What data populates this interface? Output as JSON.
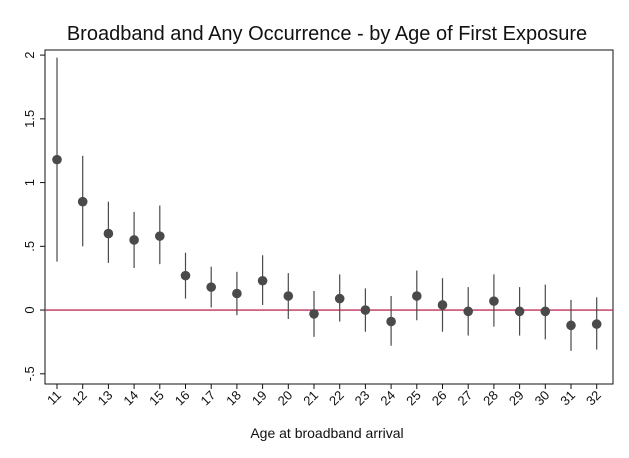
{
  "chart_data": {
    "type": "scatter",
    "title": "Broadband and Any Occurrence - by Age of First Exposure",
    "xlabel": "Age at broadband arrival",
    "ylabel": "",
    "categories": [
      "11",
      "12",
      "13",
      "14",
      "15",
      "16",
      "17",
      "18",
      "19",
      "20",
      "21",
      "22",
      "23",
      "24",
      "25",
      "26",
      "27",
      "28",
      "29",
      "30",
      "31",
      "32"
    ],
    "series": [
      {
        "values": [
          1.18,
          0.85,
          0.6,
          0.55,
          0.58,
          0.27,
          0.18,
          0.13,
          0.23,
          0.11,
          -0.03,
          0.09,
          0.0,
          -0.09,
          0.11,
          0.04,
          -0.01,
          0.07,
          -0.01,
          -0.01,
          -0.12,
          -0.11
        ],
        "ci_lower": [
          0.38,
          0.5,
          0.37,
          0.33,
          0.36,
          0.09,
          0.02,
          -0.04,
          0.04,
          -0.07,
          -0.21,
          -0.09,
          -0.17,
          -0.28,
          -0.08,
          -0.17,
          -0.2,
          -0.13,
          -0.2,
          -0.23,
          -0.32,
          -0.31
        ],
        "ci_upper": [
          1.98,
          1.21,
          0.85,
          0.77,
          0.82,
          0.45,
          0.34,
          0.3,
          0.43,
          0.29,
          0.15,
          0.28,
          0.17,
          0.11,
          0.31,
          0.25,
          0.18,
          0.28,
          0.18,
          0.2,
          0.08,
          0.1
        ]
      }
    ],
    "yticks": [
      -0.5,
      0,
      0.5,
      1,
      1.5,
      2
    ],
    "ytick_labels": [
      "-.5",
      "0",
      ".5",
      "1",
      "1.5",
      "2"
    ],
    "ylim": [
      -0.58,
      2.04
    ],
    "reference_line": 0,
    "grid": false,
    "colors": {
      "marker": "#4a4a4a",
      "ci_line": "#4a4a4a",
      "reference_line": "#c0305a",
      "axis": "#111111"
    }
  }
}
